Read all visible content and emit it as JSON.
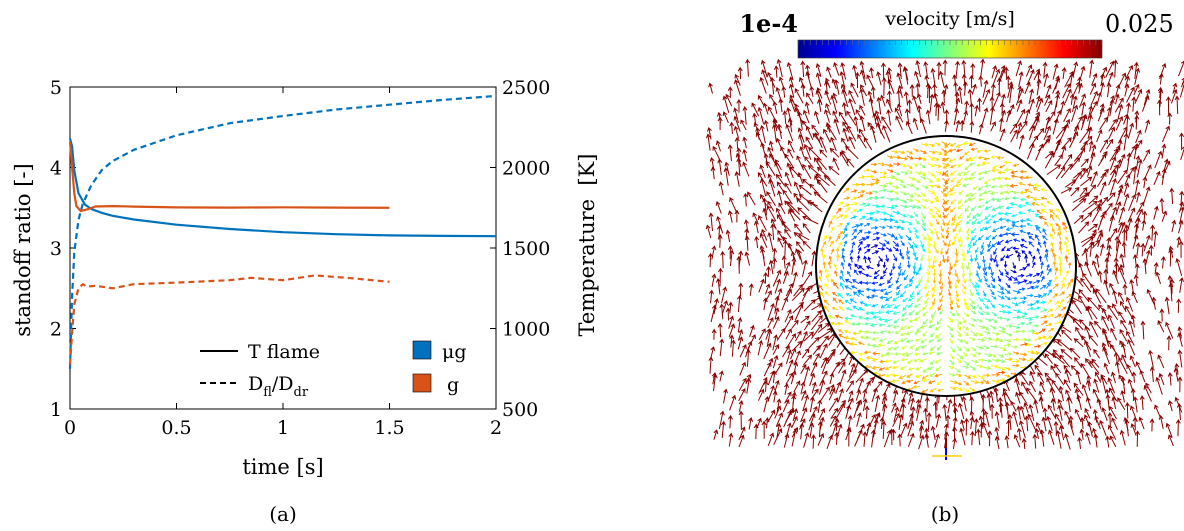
{
  "chart_data": [
    {
      "type": "line",
      "caption": "(a)",
      "xlabel": "time [s]",
      "ylabel_left": "standoff ratio [-]",
      "ylabel_right": "Temperature  [K]",
      "xlim": [
        0,
        2
      ],
      "ylim_left": [
        1,
        5
      ],
      "ylim_right": [
        500,
        2500
      ],
      "x_ticks": [
        "0",
        "0.5",
        "1",
        "1.5",
        "2"
      ],
      "y_ticks_left": [
        "1",
        "2",
        "3",
        "4",
        "5"
      ],
      "y_ticks_right": [
        "500",
        "1000",
        "1500",
        "2000",
        "2500"
      ],
      "grid": false,
      "legend_styles": {
        "position": "bottom-right",
        "solid": "T flame",
        "dashed_main": "D",
        "dashed_sub1": "fl",
        "dashed_mid": "/D",
        "dashed_sub2": "dr"
      },
      "legend_colors": [
        {
          "name": "μg",
          "color": "#0072BD"
        },
        {
          "name": "g",
          "color": "#D95319"
        }
      ],
      "series": [
        {
          "name": "μg",
          "style": "solid",
          "axis": "right",
          "color": "#0072BD",
          "x": [
            0,
            0.01,
            0.02,
            0.04,
            0.07,
            0.1,
            0.15,
            0.2,
            0.3,
            0.5,
            0.75,
            1.0,
            1.25,
            1.5,
            1.75,
            2.0
          ],
          "y": [
            2180,
            2130,
            1980,
            1840,
            1770,
            1742,
            1718,
            1700,
            1677,
            1645,
            1618,
            1598,
            1586,
            1578,
            1575,
            1573
          ]
        },
        {
          "name": "μg",
          "style": "dashed",
          "axis": "left",
          "color": "#0072BD",
          "x": [
            0,
            0.01,
            0.02,
            0.04,
            0.06,
            0.1,
            0.15,
            0.2,
            0.3,
            0.5,
            0.75,
            1.0,
            1.25,
            1.5,
            1.75,
            2.0
          ],
          "y": [
            1.5,
            2.4,
            2.95,
            3.35,
            3.55,
            3.78,
            3.97,
            4.08,
            4.22,
            4.4,
            4.55,
            4.64,
            4.72,
            4.78,
            4.84,
            4.89
          ]
        },
        {
          "name": "g",
          "style": "solid",
          "axis": "right",
          "color": "#D95319",
          "x": [
            0,
            0.01,
            0.02,
            0.03,
            0.05,
            0.08,
            0.12,
            0.2,
            0.3,
            0.5,
            0.75,
            1.0,
            1.25,
            1.5
          ],
          "y": [
            2160,
            2000,
            1840,
            1760,
            1730,
            1740,
            1758,
            1760,
            1757,
            1752,
            1751,
            1753,
            1751,
            1750
          ]
        },
        {
          "name": "g",
          "style": "dashed",
          "axis": "left",
          "color": "#D95319",
          "x": [
            0,
            0.01,
            0.02,
            0.04,
            0.06,
            0.08,
            0.12,
            0.2,
            0.3,
            0.5,
            0.75,
            0.85,
            1.0,
            1.15,
            1.3,
            1.5
          ],
          "y": [
            1.55,
            1.95,
            2.3,
            2.5,
            2.55,
            2.52,
            2.53,
            2.5,
            2.55,
            2.57,
            2.6,
            2.63,
            2.6,
            2.66,
            2.63,
            2.58
          ]
        }
      ]
    },
    {
      "type": "vector-field",
      "caption": "(b)",
      "colorbar": {
        "title": "velocity [m/s]",
        "min_label": "1e-4",
        "max_label": "0.025",
        "colormap": "jet"
      },
      "description_colors": {
        "outside_arrows": "#8B0000",
        "droplet_outline": "#000000"
      }
    }
  ]
}
